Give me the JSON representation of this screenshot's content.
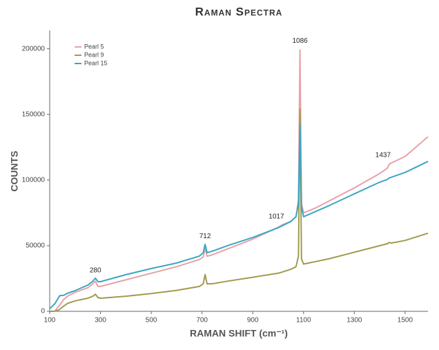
{
  "chart_data": {
    "type": "line",
    "title": "Raman Spectra",
    "x_label": "RAMAN SHIFT (cm⁻¹)",
    "y_label": "COUNTS",
    "x": [
      100,
      120,
      140,
      155,
      170,
      200,
      250,
      270,
      280,
      290,
      300,
      400,
      500,
      600,
      690,
      705,
      712,
      720,
      740,
      800,
      900,
      1000,
      1017,
      1050,
      1070,
      1080,
      1086,
      1092,
      1100,
      1150,
      1200,
      1300,
      1400,
      1430,
      1437,
      1445,
      1500,
      1590
    ],
    "series": [
      {
        "name": "Pearl 5",
        "color": "#e8a1a6",
        "values": [
          0,
          200,
          5000,
          9000,
          11500,
          14500,
          18000,
          21000,
          23000,
          19000,
          19000,
          24000,
          29000,
          34000,
          39500,
          41500,
          48000,
          42000,
          43000,
          47500,
          55000,
          64000,
          66000,
          68500,
          72000,
          85000,
          199000,
          82000,
          75000,
          79000,
          84000,
          94000,
          105000,
          109000,
          112000,
          113000,
          118000,
          133000
        ]
      },
      {
        "name": "Pearl 9",
        "color": "#a09a4e",
        "values": [
          0,
          0,
          1500,
          4000,
          6000,
          8000,
          10000,
          11500,
          13000,
          10500,
          10000,
          11500,
          13500,
          16000,
          19000,
          21000,
          28000,
          21000,
          21000,
          23000,
          26000,
          29000,
          30000,
          32000,
          34000,
          42000,
          154000,
          40000,
          36000,
          38000,
          40000,
          45000,
          50000,
          51500,
          52500,
          52000,
          54000,
          59500
        ]
      },
      {
        "name": "Pearl 15",
        "color": "#3aa6c4",
        "values": [
          2000,
          5800,
          12000,
          12200,
          13700,
          15800,
          20000,
          23000,
          25300,
          22600,
          22600,
          27900,
          32600,
          36800,
          42100,
          44700,
          51000,
          44700,
          45800,
          50000,
          56300,
          63700,
          65300,
          68400,
          72100,
          82100,
          142600,
          79500,
          72100,
          76300,
          80500,
          89500,
          98400,
          100500,
          101600,
          102100,
          105800,
          114200
        ]
      }
    ],
    "annotations": [
      {
        "text": "280",
        "x": 280,
        "y": 31000
      },
      {
        "text": "712",
        "x": 712,
        "y": 57000
      },
      {
        "text": "1017",
        "x": 993,
        "y": 72000
      },
      {
        "text": "1086",
        "x": 1086,
        "y": 206000
      },
      {
        "text": "1437",
        "x": 1413,
        "y": 119000
      }
    ],
    "xlim": [
      100,
      1590
    ],
    "ylim": [
      0,
      214000
    ],
    "xticks": [
      100,
      300,
      500,
      700,
      900,
      1100,
      1300,
      1500
    ],
    "yticks": [
      0,
      50000,
      100000,
      150000,
      200000
    ],
    "grid": false,
    "legend": "upper left"
  }
}
